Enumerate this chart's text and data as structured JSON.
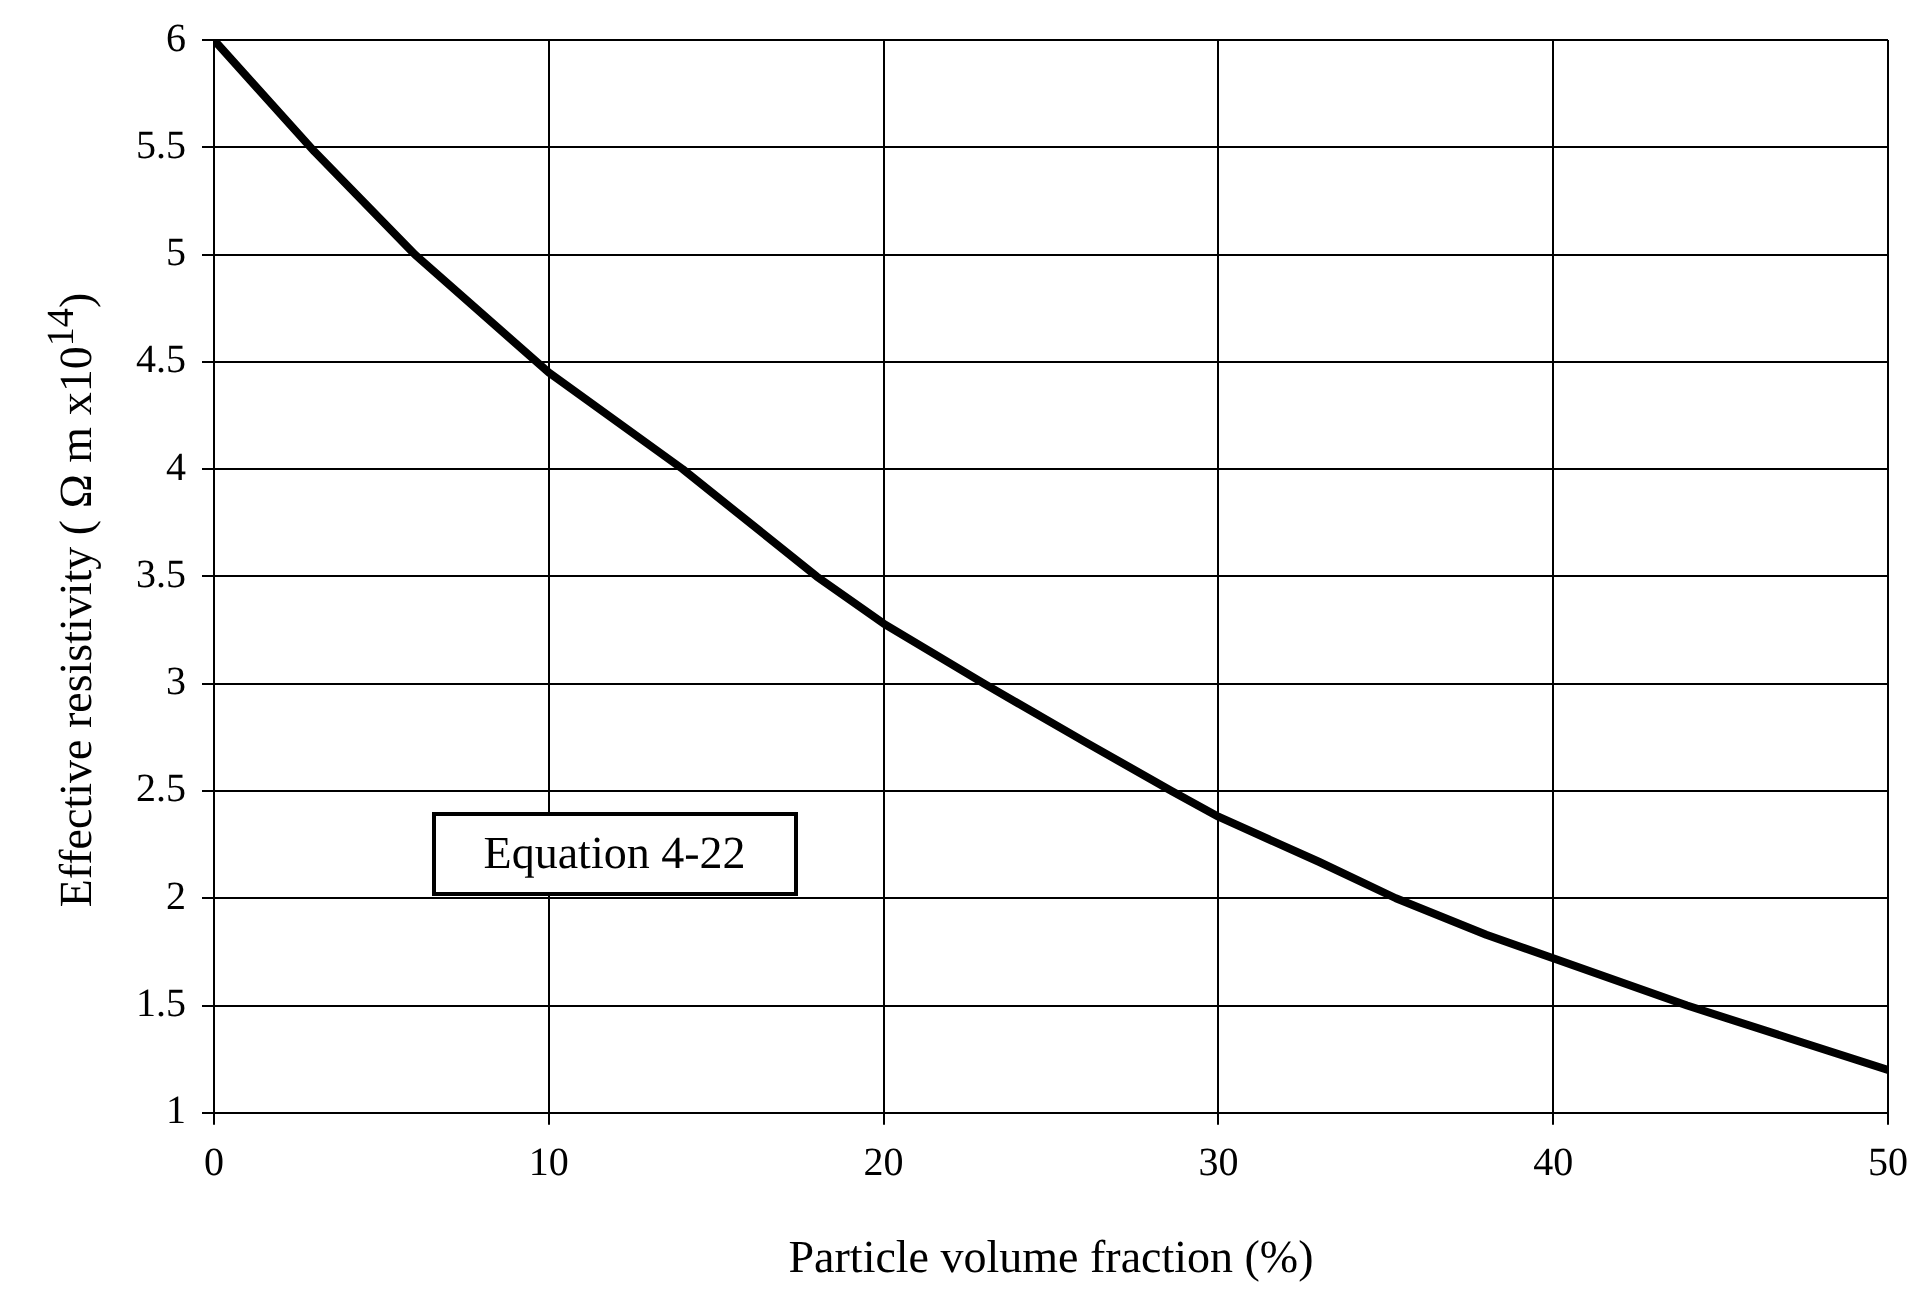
{
  "chart_data": {
    "type": "line",
    "xlabel": "Particle volume fraction (%)",
    "ylabel": "Effective resistivity ( Ω m x10$^{14}$)",
    "annotations": [
      "Equation 4-22"
    ],
    "series": [
      {
        "color": "#000000",
        "x": [
          0,
          3,
          6,
          10,
          14,
          18,
          20,
          23,
          26,
          28.6,
          30,
          33,
          35.3,
          38,
          40,
          44,
          47,
          50
        ],
        "values": [
          6,
          5.48,
          5.0,
          4.45,
          4.0,
          3.5,
          3.28,
          3.0,
          2.73,
          2.5,
          2.38,
          2.17,
          2.0,
          1.83,
          1.72,
          1.5,
          1.35,
          1.2
        ]
      }
    ],
    "xlim": [
      0,
      50
    ],
    "xticks": [
      0,
      10,
      20,
      30,
      40,
      50
    ],
    "ylim": [
      1,
      6
    ],
    "yticks": [
      1,
      1.5,
      2,
      2.5,
      3,
      3.5,
      4,
      4.5,
      5,
      5.5,
      6
    ],
    "grid": true,
    "legend": false,
    "marker": "none",
    "line_style": "solid"
  }
}
